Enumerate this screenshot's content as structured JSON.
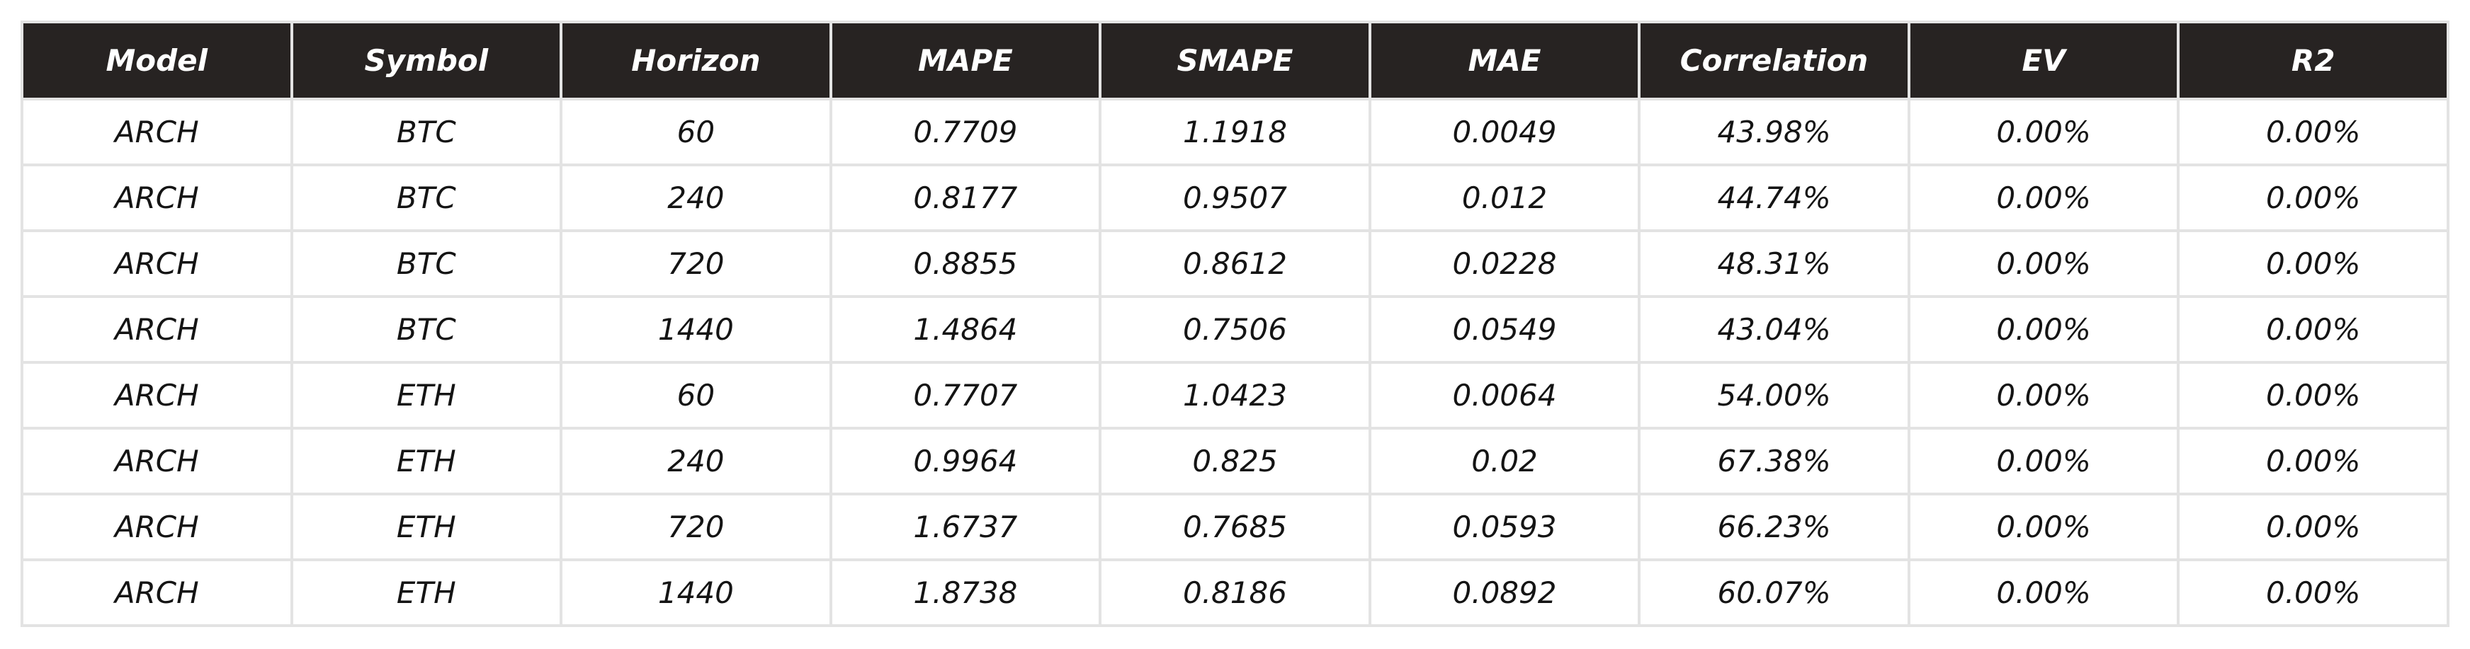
{
  "chart_data": {
    "type": "table",
    "columns": [
      "Model",
      "Symbol",
      "Horizon",
      "MAPE",
      "SMAPE",
      "MAE",
      "Correlation",
      "EV",
      "R2"
    ],
    "rows": [
      [
        "ARCH",
        "BTC",
        "60",
        "0.7709",
        "1.1918",
        "0.0049",
        "43.98%",
        "0.00%",
        "0.00%"
      ],
      [
        "ARCH",
        "BTC",
        "240",
        "0.8177",
        "0.9507",
        "0.012",
        "44.74%",
        "0.00%",
        "0.00%"
      ],
      [
        "ARCH",
        "BTC",
        "720",
        "0.8855",
        "0.8612",
        "0.0228",
        "48.31%",
        "0.00%",
        "0.00%"
      ],
      [
        "ARCH",
        "BTC",
        "1440",
        "1.4864",
        "0.7506",
        "0.0549",
        "43.04%",
        "0.00%",
        "0.00%"
      ],
      [
        "ARCH",
        "ETH",
        "60",
        "0.7707",
        "1.0423",
        "0.0064",
        "54.00%",
        "0.00%",
        "0.00%"
      ],
      [
        "ARCH",
        "ETH",
        "240",
        "0.9964",
        "0.825",
        "0.02",
        "67.38%",
        "0.00%",
        "0.00%"
      ],
      [
        "ARCH",
        "ETH",
        "720",
        "1.6737",
        "0.7685",
        "0.0593",
        "66.23%",
        "0.00%",
        "0.00%"
      ],
      [
        "ARCH",
        "ETH",
        "1440",
        "1.8738",
        "0.8186",
        "0.0892",
        "60.07%",
        "0.00%",
        "0.00%"
      ]
    ],
    "colors": {
      "header_background": "#272322",
      "header_text": "#ffffff",
      "cell_text": "#141414",
      "grid": "#e3e3e3"
    }
  }
}
